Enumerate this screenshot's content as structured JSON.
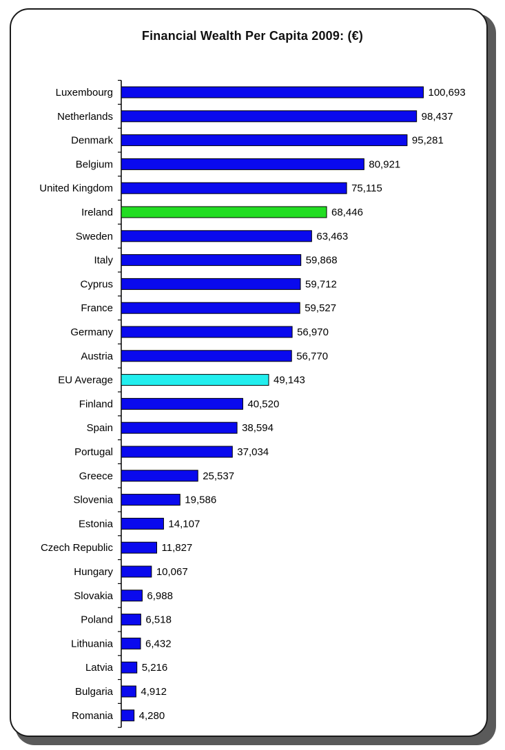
{
  "chart_data": {
    "type": "bar",
    "orientation": "horizontal",
    "title": "Financial Wealth Per Capita 2009: (€)",
    "categories": [
      "Luxembourg",
      "Netherlands",
      "Denmark",
      "Belgium",
      "United Kingdom",
      "Ireland",
      "Sweden",
      "Italy",
      "Cyprus",
      "France",
      "Germany",
      "Austria",
      "EU Average",
      "Finland",
      "Spain",
      "Portugal",
      "Greece",
      "Slovenia",
      "Estonia",
      "Czech Republic",
      "Hungary",
      "Slovakia",
      "Poland",
      "Lithuania",
      "Latvia",
      "Bulgaria",
      "Romania"
    ],
    "values": [
      100693,
      98437,
      95281,
      80921,
      75115,
      68446,
      63463,
      59868,
      59712,
      59527,
      56970,
      56770,
      49143,
      40520,
      38594,
      37034,
      25537,
      19586,
      14107,
      11827,
      10067,
      6988,
      6518,
      6432,
      5216,
      4912,
      4280
    ],
    "value_labels": [
      "100,693",
      "98,437",
      "95,281",
      "80,921",
      "75,115",
      "68,446",
      "63,463",
      "59,868",
      "59,712",
      "59,527",
      "56,970",
      "56,770",
      "49,143",
      "40,520",
      "38,594",
      "37,034",
      "25,537",
      "19,586",
      "14,107",
      "11,827",
      "10,067",
      "6,988",
      "6,518",
      "6,432",
      "5,216",
      "4,912",
      "4,280"
    ],
    "highlights": {
      "Ireland": "#22dd22",
      "EU Average": "#22eeee"
    },
    "bar_color": "#0a0aee",
    "xlim": [
      0,
      101500
    ],
    "grid": false,
    "legend": "none"
  }
}
